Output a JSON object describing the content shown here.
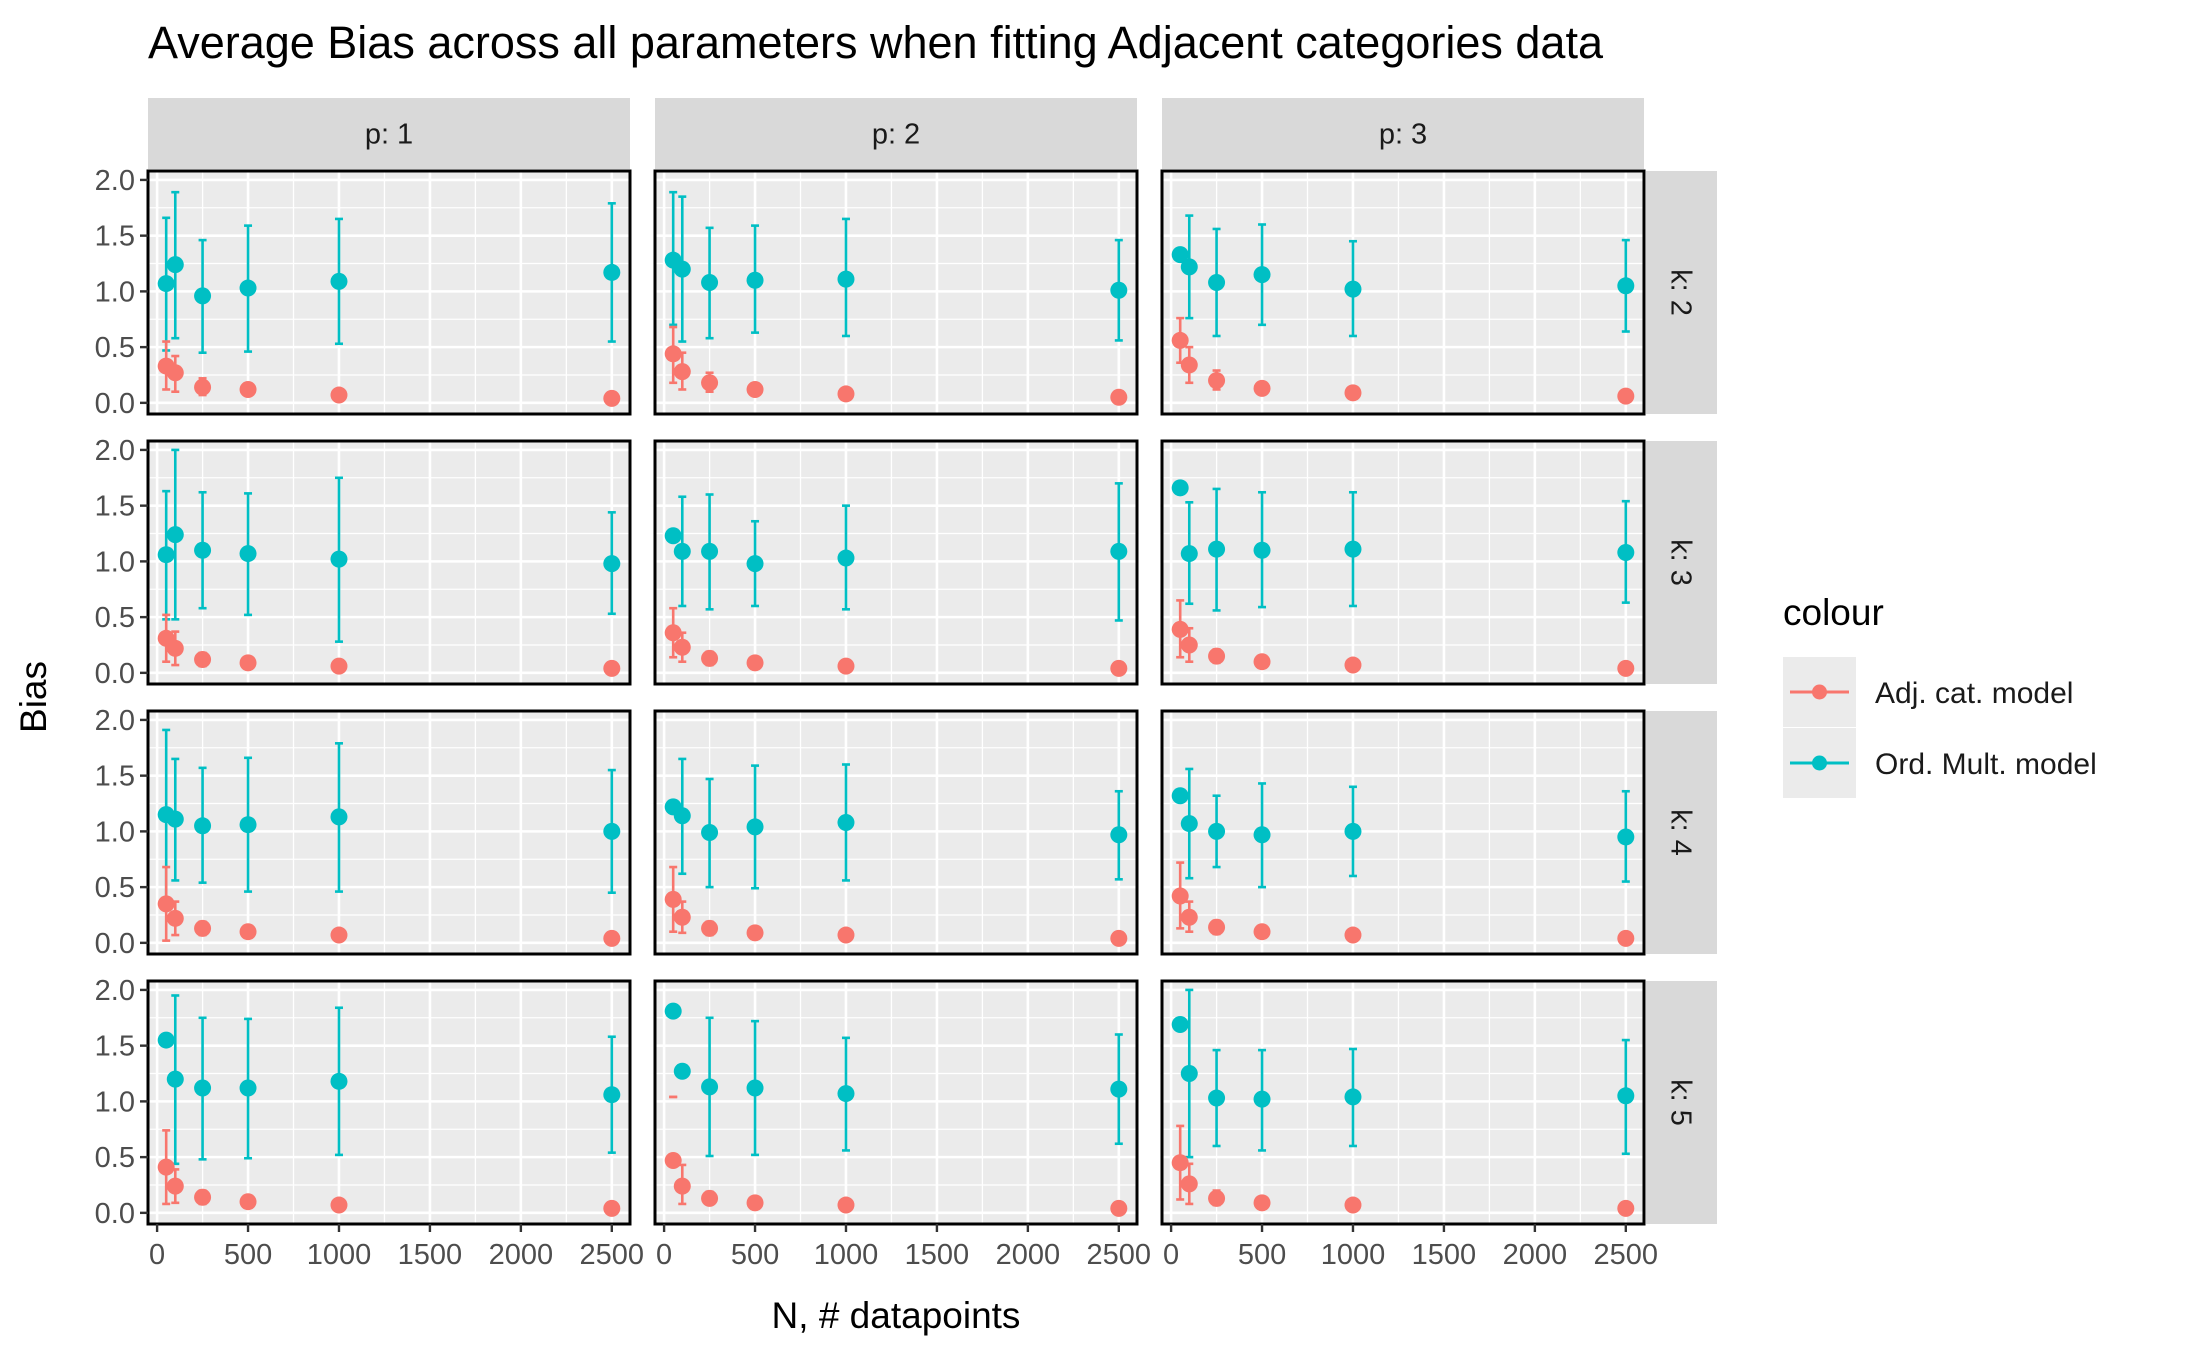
{
  "chart_data": {
    "type": "scatter",
    "title": "Average Bias across all parameters when fitting Adjacent categories data",
    "xlabel": "N, # datapoints",
    "ylabel": "Bias",
    "xlim": [
      -50,
      2600
    ],
    "ylim": [
      -0.1,
      2.08
    ],
    "x_ticks": [
      0,
      500,
      1000,
      1500,
      2000,
      2500
    ],
    "y_ticks": [
      0.0,
      0.5,
      1.0,
      1.5,
      2.0
    ],
    "x_tick_labels": [
      "0",
      "500",
      "1000",
      "1500",
      "2000",
      "2500"
    ],
    "y_tick_labels": [
      "0.0",
      "0.5",
      "1.0",
      "1.5",
      "2.0"
    ],
    "grid": true,
    "facet_cols": [
      "p: 1",
      "p: 2",
      "p: 3"
    ],
    "facet_rows": [
      "k: 2",
      "k: 3",
      "k: 4",
      "k: 5"
    ],
    "legend": {
      "title": "colour",
      "position": "right",
      "entries": [
        {
          "name": "Adj. cat. model",
          "color": "#F8766D"
        },
        {
          "name": "Ord. Mult. model",
          "color": "#00BFC4"
        }
      ]
    },
    "x": [
      50,
      100,
      250,
      500,
      1000,
      2500
    ],
    "panels": [
      {
        "p": "p: 1",
        "k": "k: 2",
        "adj": {
          "y": [
            0.33,
            0.27,
            0.14,
            0.12,
            0.07,
            0.04
          ],
          "lo": [
            0.12,
            0.1,
            0.07,
            0.08,
            0.05,
            0.03
          ],
          "hi": [
            0.55,
            0.42,
            0.22,
            0.17,
            0.09,
            0.05
          ]
        },
        "ord": {
          "y": [
            1.07,
            1.24,
            0.96,
            1.03,
            1.09,
            1.17
          ],
          "lo": [
            0.47,
            0.58,
            0.45,
            0.46,
            0.53,
            0.55
          ],
          "hi": [
            1.66,
            1.89,
            1.46,
            1.59,
            1.65,
            1.79
          ]
        }
      },
      {
        "p": "p: 2",
        "k": "k: 2",
        "adj": {
          "y": [
            0.44,
            0.28,
            0.18,
            0.12,
            0.08,
            0.05
          ],
          "lo": [
            0.18,
            0.12,
            0.1,
            0.08,
            0.06,
            0.04
          ],
          "hi": [
            0.68,
            0.45,
            0.27,
            0.16,
            0.1,
            0.06
          ]
        },
        "ord": {
          "y": [
            1.28,
            1.2,
            1.08,
            1.1,
            1.11,
            1.01
          ],
          "lo": [
            0.7,
            0.55,
            0.58,
            0.63,
            0.6,
            0.56
          ],
          "hi": [
            1.89,
            1.85,
            1.57,
            1.59,
            1.65,
            1.46
          ]
        }
      },
      {
        "p": "p: 3",
        "k": "k: 2",
        "adj": {
          "y": [
            0.56,
            0.34,
            0.2,
            0.13,
            0.09,
            0.06
          ],
          "lo": [
            0.36,
            0.18,
            0.12,
            0.09,
            0.07,
            0.05
          ],
          "hi": [
            0.76,
            0.5,
            0.29,
            0.17,
            0.11,
            0.07
          ]
        },
        "ord": {
          "y": [
            1.33,
            1.22,
            1.08,
            1.15,
            1.02,
            1.05
          ],
          "lo": [
            1.33,
            0.76,
            0.6,
            0.7,
            0.6,
            0.64
          ],
          "hi": [
            1.33,
            1.68,
            1.56,
            1.6,
            1.45,
            1.46
          ]
        }
      },
      {
        "p": "p: 1",
        "k": "k: 3",
        "adj": {
          "y": [
            0.31,
            0.22,
            0.12,
            0.09,
            0.06,
            0.04
          ],
          "lo": [
            0.1,
            0.07,
            0.06,
            0.06,
            0.04,
            0.03
          ],
          "hi": [
            0.52,
            0.37,
            0.18,
            0.12,
            0.08,
            0.05
          ]
        },
        "ord": {
          "y": [
            1.06,
            1.24,
            1.1,
            1.07,
            1.02,
            0.98
          ],
          "lo": [
            0.48,
            0.48,
            0.58,
            0.52,
            0.28,
            0.53
          ],
          "hi": [
            1.63,
            2.0,
            1.62,
            1.61,
            1.75,
            1.44
          ]
        }
      },
      {
        "p": "p: 2",
        "k": "k: 3",
        "adj": {
          "y": [
            0.36,
            0.23,
            0.13,
            0.09,
            0.06,
            0.04
          ],
          "lo": [
            0.14,
            0.1,
            0.07,
            0.06,
            0.05,
            0.03
          ],
          "hi": [
            0.58,
            0.36,
            0.19,
            0.12,
            0.08,
            0.05
          ]
        },
        "ord": {
          "y": [
            1.23,
            1.09,
            1.09,
            0.98,
            1.03,
            1.09
          ],
          "lo": [
            1.23,
            0.6,
            0.57,
            0.6,
            0.57,
            0.47
          ],
          "hi": [
            1.23,
            1.58,
            1.6,
            1.36,
            1.5,
            1.7
          ]
        }
      },
      {
        "p": "p: 3",
        "k": "k: 3",
        "adj": {
          "y": [
            0.39,
            0.25,
            0.15,
            0.1,
            0.07,
            0.04
          ],
          "lo": [
            0.14,
            0.1,
            0.09,
            0.07,
            0.05,
            0.03
          ],
          "hi": [
            0.65,
            0.4,
            0.21,
            0.13,
            0.08,
            0.05
          ]
        },
        "ord": {
          "y": [
            1.66,
            1.07,
            1.11,
            1.1,
            1.11,
            1.08
          ],
          "lo": [
            1.66,
            0.62,
            0.56,
            0.59,
            0.6,
            0.63
          ],
          "hi": [
            1.66,
            1.53,
            1.65,
            1.62,
            1.62,
            1.54
          ]
        }
      },
      {
        "p": "p: 1",
        "k": "k: 4",
        "adj": {
          "y": [
            0.35,
            0.22,
            0.13,
            0.1,
            0.07,
            0.04
          ],
          "lo": [
            0.02,
            0.07,
            0.07,
            0.07,
            0.05,
            0.03
          ],
          "hi": [
            0.68,
            0.37,
            0.19,
            0.13,
            0.09,
            0.05
          ]
        },
        "ord": {
          "y": [
            1.15,
            1.11,
            1.05,
            1.06,
            1.13,
            1.0
          ],
          "lo": [
            0.4,
            0.56,
            0.54,
            0.46,
            0.46,
            0.45
          ],
          "hi": [
            1.91,
            1.65,
            1.57,
            1.66,
            1.79,
            1.55
          ]
        }
      },
      {
        "p": "p: 2",
        "k": "k: 4",
        "adj": {
          "y": [
            0.39,
            0.23,
            0.13,
            0.09,
            0.07,
            0.04
          ],
          "lo": [
            0.1,
            0.09,
            0.07,
            0.06,
            0.05,
            0.03
          ],
          "hi": [
            0.68,
            0.37,
            0.19,
            0.12,
            0.09,
            0.05
          ]
        },
        "ord": {
          "y": [
            1.22,
            1.14,
            0.99,
            1.04,
            1.08,
            0.97
          ],
          "lo": [
            1.22,
            0.62,
            0.5,
            0.49,
            0.56,
            0.57
          ],
          "hi": [
            1.22,
            1.65,
            1.47,
            1.59,
            1.6,
            1.36
          ]
        }
      },
      {
        "p": "p: 3",
        "k": "k: 4",
        "adj": {
          "y": [
            0.42,
            0.23,
            0.14,
            0.1,
            0.07,
            0.04
          ],
          "lo": [
            0.13,
            0.1,
            0.08,
            0.07,
            0.05,
            0.03
          ],
          "hi": [
            0.72,
            0.37,
            0.2,
            0.13,
            0.09,
            0.05
          ]
        },
        "ord": {
          "y": [
            1.32,
            1.07,
            1.0,
            0.97,
            1.0,
            0.95
          ],
          "lo": [
            1.32,
            0.58,
            0.68,
            0.5,
            0.6,
            0.55
          ],
          "hi": [
            1.32,
            1.56,
            1.32,
            1.43,
            1.4,
            1.36
          ]
        }
      },
      {
        "p": "p: 1",
        "k": "k: 5",
        "adj": {
          "y": [
            0.41,
            0.24,
            0.14,
            0.1,
            0.07,
            0.04
          ],
          "lo": [
            0.08,
            0.09,
            0.08,
            0.07,
            0.05,
            0.03
          ],
          "hi": [
            0.74,
            0.39,
            0.2,
            0.13,
            0.09,
            0.05
          ]
        },
        "ord": {
          "y": [
            1.55,
            1.2,
            1.12,
            1.12,
            1.18,
            1.06
          ],
          "lo": [
            1.55,
            0.44,
            0.48,
            0.49,
            0.52,
            0.54
          ],
          "hi": [
            1.55,
            1.95,
            1.75,
            1.74,
            1.84,
            1.58
          ]
        }
      },
      {
        "p": "p: 2",
        "k": "k: 5",
        "adj": {
          "y": [
            0.47,
            0.24,
            0.13,
            0.09,
            0.07,
            0.04
          ],
          "lo": [
            1.04,
            0.08,
            0.08,
            0.07,
            0.05,
            0.03
          ],
          "hi": [
            1.04,
            0.43,
            0.19,
            0.12,
            0.09,
            0.05
          ]
        },
        "ord": {
          "y": [
            1.81,
            1.27,
            1.13,
            1.12,
            1.07,
            1.11
          ],
          "lo": [
            1.81,
            1.27,
            0.51,
            0.52,
            0.56,
            0.62
          ],
          "hi": [
            1.81,
            1.27,
            1.75,
            1.72,
            1.57,
            1.6
          ]
        }
      },
      {
        "p": "p: 3",
        "k": "k: 5",
        "adj": {
          "y": [
            0.45,
            0.26,
            0.13,
            0.09,
            0.07,
            0.04
          ],
          "lo": [
            0.12,
            0.08,
            0.07,
            0.06,
            0.05,
            0.03
          ],
          "hi": [
            0.78,
            0.44,
            0.2,
            0.12,
            0.09,
            0.05
          ]
        },
        "ord": {
          "y": [
            1.69,
            1.25,
            1.03,
            1.02,
            1.04,
            1.05
          ],
          "lo": [
            1.69,
            0.5,
            0.6,
            0.56,
            0.6,
            0.53
          ],
          "hi": [
            1.69,
            2.0,
            1.46,
            1.46,
            1.47,
            1.55
          ]
        }
      }
    ]
  }
}
